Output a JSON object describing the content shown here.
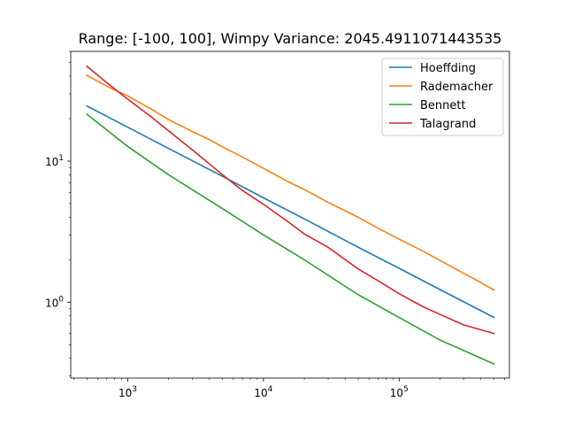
{
  "chart_data": {
    "type": "line",
    "title": "Range: [-100, 100], Wimpy Variance: 2045.4911071443535",
    "xlabel": "",
    "ylabel": "",
    "xscale": "log",
    "yscale": "log",
    "xlim": [
      380,
      650000
    ],
    "ylim": [
      0.29,
      60
    ],
    "grid": false,
    "legend_position": "top-right",
    "x_ticks": [
      {
        "value": 1000,
        "base": "10",
        "exp": "3"
      },
      {
        "value": 10000,
        "base": "10",
        "exp": "4"
      },
      {
        "value": 100000,
        "base": "10",
        "exp": "5"
      }
    ],
    "y_ticks": [
      {
        "value": 1,
        "base": "10",
        "exp": "0"
      },
      {
        "value": 10,
        "base": "10",
        "exp": "1"
      }
    ],
    "series": [
      {
        "name": "Hoeffding",
        "color": "#1f77b4",
        "x": [
          500,
          1000,
          2000,
          5000,
          10000,
          20000,
          50000,
          100000,
          200000,
          500000
        ],
        "y": [
          24.6,
          17.4,
          12.3,
          7.8,
          5.5,
          3.9,
          2.45,
          1.74,
          1.23,
          0.78
        ]
      },
      {
        "name": "Rademacher",
        "color": "#ff7f0e",
        "x": [
          500,
          700,
          1000,
          1500,
          2000,
          3000,
          4000,
          5000,
          7000,
          10000,
          15000,
          20000,
          30000,
          40000,
          50000,
          70000,
          100000,
          150000,
          200000,
          300000,
          400000,
          500000
        ],
        "y": [
          40.5,
          34.0,
          29.0,
          23.3,
          19.7,
          16.2,
          14.2,
          12.6,
          10.7,
          8.9,
          7.2,
          6.3,
          5.1,
          4.45,
          4.0,
          3.35,
          2.8,
          2.3,
          1.98,
          1.6,
          1.38,
          1.22
        ]
      },
      {
        "name": "Bennett",
        "color": "#2ca02c",
        "x": [
          500,
          1000,
          2000,
          5000,
          10000,
          20000,
          50000,
          100000,
          200000,
          500000
        ],
        "y": [
          21.5,
          12.7,
          8.0,
          4.6,
          3.0,
          2.0,
          1.13,
          0.78,
          0.54,
          0.365
        ]
      },
      {
        "name": "Talagrand",
        "color": "#d62728",
        "x": [
          500,
          700,
          1000,
          1500,
          2000,
          3000,
          5000,
          7000,
          10000,
          15000,
          20000,
          30000,
          50000,
          70000,
          100000,
          150000,
          200000,
          300000,
          500000
        ],
        "y": [
          47.0,
          36.0,
          27.5,
          20.5,
          16.4,
          12.0,
          8.0,
          6.2,
          4.95,
          3.75,
          3.05,
          2.45,
          1.72,
          1.42,
          1.15,
          0.93,
          0.82,
          0.69,
          0.6
        ]
      }
    ]
  }
}
